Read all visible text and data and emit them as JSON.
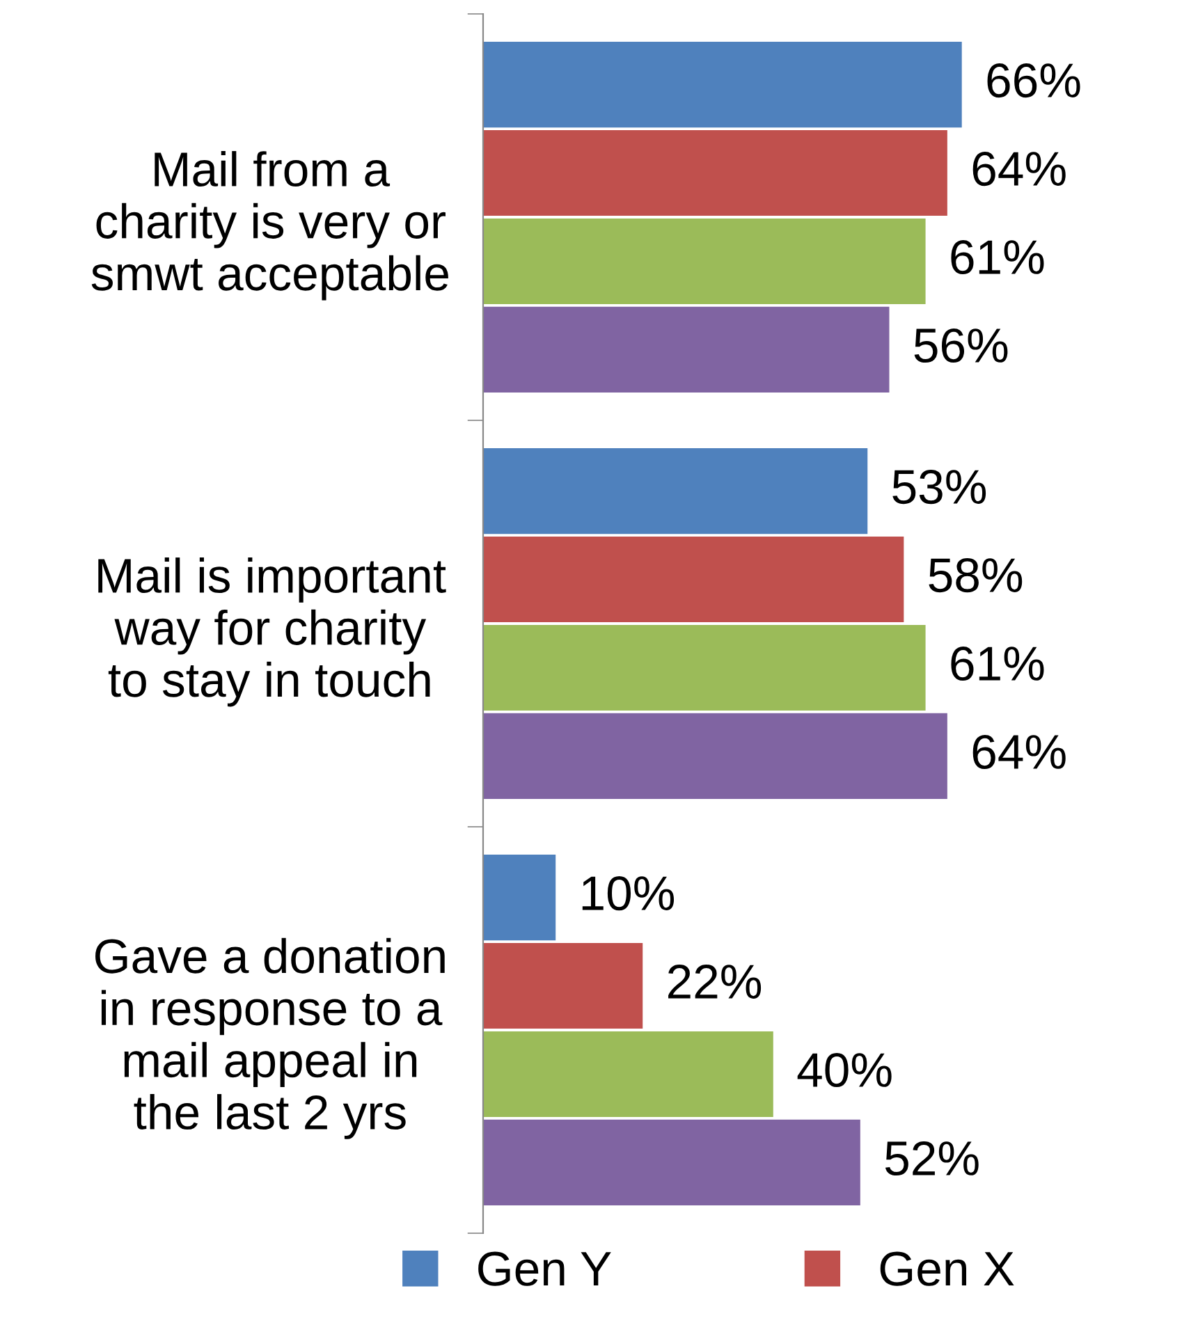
{
  "chart_data": {
    "type": "bar",
    "orientation": "horizontal",
    "categories": [
      "Mail from a\ncharity is very or\nsmwt acceptable",
      "Mail is important\nway for charity\nto stay in touch",
      "Gave a donation\nin response to a\nmail appeal in\nthe last 2 yrs"
    ],
    "series": [
      {
        "name": "Gen Y",
        "color": "#4f81bd",
        "values": [
          66,
          53,
          10
        ],
        "value_labels": [
          "66%",
          "53%",
          "10%"
        ]
      },
      {
        "name": "Gen X",
        "color": "#c0504d",
        "values": [
          64,
          58,
          22
        ],
        "value_labels": [
          "64%",
          "58%",
          "22%"
        ]
      },
      {
        "color": "#9bbb59",
        "values": [
          61,
          61,
          40
        ],
        "value_labels": [
          "61%",
          "61%",
          "40%"
        ]
      },
      {
        "color": "#8064a2",
        "values": [
          56,
          64,
          52
        ],
        "value_labels": [
          "56%",
          "64%",
          "52%"
        ]
      }
    ],
    "legend": "bottom",
    "grid": false
  }
}
